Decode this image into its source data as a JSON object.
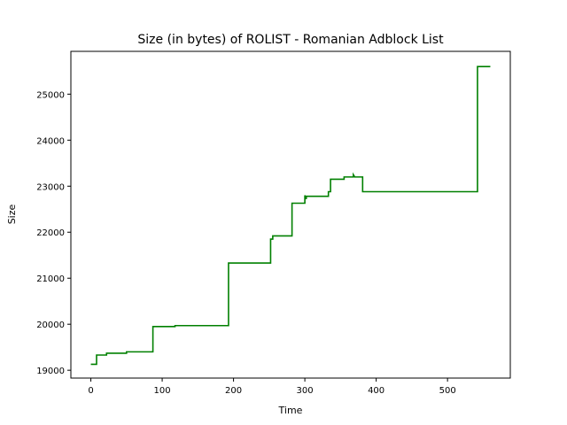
{
  "chart_data": {
    "type": "line",
    "title": "Size (in bytes) of ROLIST - Romanian Adblock List",
    "xlabel": "Time",
    "ylabel": "Size",
    "xlim": [
      -28,
      588
    ],
    "ylim": [
      18830,
      25930
    ],
    "xticks": [
      0,
      100,
      200,
      300,
      400,
      500
    ],
    "yticks": [
      19000,
      20000,
      21000,
      22000,
      23000,
      24000,
      25000
    ],
    "grid": false,
    "line_color": "#008000",
    "series": [
      {
        "x": [
          0,
          8,
          8,
          22,
          22,
          50,
          50,
          87,
          87,
          118,
          118,
          193,
          193,
          252,
          252,
          255,
          255,
          282,
          282,
          300,
          300,
          302,
          302,
          305,
          305,
          333,
          333,
          336,
          336,
          355,
          355,
          368,
          368,
          370,
          370,
          381,
          381,
          542,
          542,
          560
        ],
        "values": [
          19130,
          19130,
          19330,
          19330,
          19370,
          19370,
          19400,
          19400,
          19950,
          19950,
          19970,
          19970,
          21330,
          21330,
          21850,
          21850,
          21920,
          21920,
          22630,
          22630,
          22800,
          22720,
          22780,
          22780,
          22780,
          22780,
          22880,
          22880,
          23150,
          23150,
          23200,
          23200,
          23250,
          23200,
          23200,
          23200,
          22880,
          22880,
          25600,
          25600
        ]
      }
    ]
  }
}
